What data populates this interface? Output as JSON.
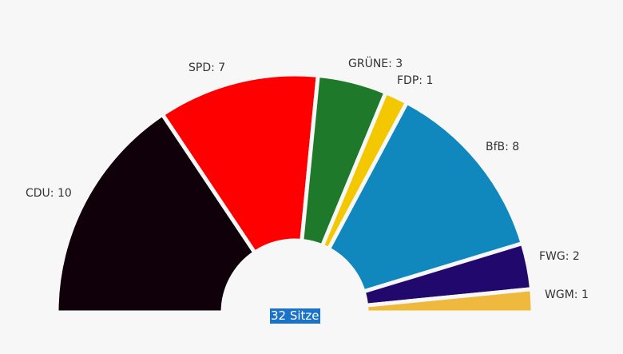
{
  "chart_data": {
    "type": "pie",
    "subtype": "parliament-semicircle",
    "title": "",
    "total_label": "32 Sitze",
    "total": 32,
    "categories": [
      "CDU",
      "SPD",
      "GRÜNE",
      "FDP",
      "BfB",
      "FWG",
      "WGM"
    ],
    "values": [
      10,
      7,
      3,
      1,
      8,
      2,
      1
    ],
    "colors": [
      "#0f0009",
      "#ff0000",
      "#1e7a2a",
      "#f4c800",
      "#1088be",
      "#21086c",
      "#efb93e"
    ],
    "labels": [
      "CDU: 10",
      "SPD: 7",
      "GRÜNE: 3",
      "FDP: 1",
      "BfB: 8",
      "FWG: 2",
      "WGM: 1"
    ],
    "legend": "none (inline labels)"
  },
  "labels": {
    "cdu": "CDU: 10",
    "spd": "SPD: 7",
    "gruene": "GRÜNE: 3",
    "fdp": "FDP: 1",
    "bfb": "BfB: 8",
    "fwg": "FWG: 2",
    "wgm": "WGM: 1",
    "total": "32 Sitze"
  }
}
